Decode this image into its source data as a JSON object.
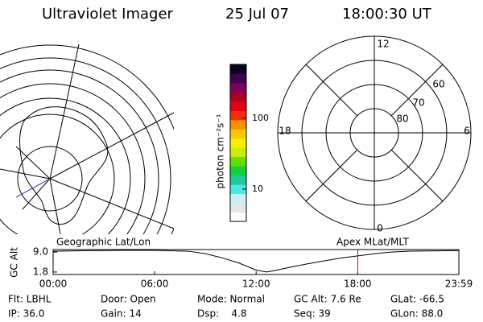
{
  "header": {
    "title": "Ultraviolet Imager",
    "date": "25 Jul 07",
    "time": "18:00:30 UT"
  },
  "colorbar": {
    "label": "photon cm⁻²s⁻¹",
    "log_scale": true,
    "lim": [
      3.5,
      575
    ],
    "ticks": [
      10,
      100
    ],
    "colors": [
      "#ffffff",
      "#e6e6e6",
      "#c8f0f0",
      "#50e6e6",
      "#20c8a0",
      "#10d040",
      "#60e000",
      "#c8f000",
      "#f0f000",
      "#f8c800",
      "#f89000",
      "#f03000",
      "#e00010",
      "#b00020",
      "#800060",
      "#400050",
      "#100020"
    ]
  },
  "polar": {
    "mlt_labels": [
      "12",
      "6",
      "0",
      "18"
    ],
    "lat_labels": [
      "60",
      "70",
      "80"
    ]
  },
  "altitude_plot": {
    "title_left": "Geographic Lat/Lon",
    "title_right": "Apex MLat/MLT",
    "ylabel": "GC Alt",
    "ylim": [
      0.9,
      9.9
    ],
    "yticks": [
      1.8,
      {
        "value": 9,
        "label": "9.0"
      }
    ],
    "xlim": [
      0,
      23.983
    ],
    "xticks": [
      {
        "value": 0,
        "label": "00:00"
      },
      {
        "value": 6,
        "label": "06:00"
      },
      {
        "value": 12,
        "label": "12:00"
      },
      {
        "value": 18,
        "label": "18:00"
      },
      {
        "value": 23.983,
        "label": "23:59"
      }
    ],
    "x": [
      0,
      2,
      4,
      6,
      8,
      9,
      10,
      11,
      12,
      12.6,
      13,
      14,
      15,
      16,
      17,
      18,
      19,
      20,
      21,
      22,
      23.983
    ],
    "values": [
      9.3,
      9.5,
      9.6,
      9.6,
      9.3,
      8.4,
      6.9,
      5.0,
      2.5,
      1.8,
      2.2,
      3.5,
      4.7,
      5.8,
      6.8,
      7.6,
      8.4,
      9.0,
      9.3,
      9.4,
      9.5
    ],
    "color": "#000000",
    "marker_hour": 18.008,
    "marker_color": "#e00000"
  },
  "footer": {
    "rows": [
      [
        "Flt: LBHL",
        "Door: Open",
        "Mode: Normal",
        "GC Alt: 7.6 Re",
        "GLat: -66.5"
      ],
      [
        "IP: 36.0",
        "Gain: 14",
        "Dsp:    4.8",
        "Seq: 39",
        "GLon: 88.0"
      ]
    ]
  }
}
